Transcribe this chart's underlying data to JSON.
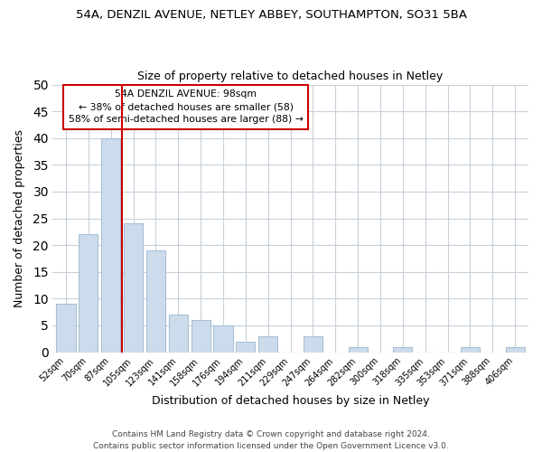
{
  "title_line1": "54A, DENZIL AVENUE, NETLEY ABBEY, SOUTHAMPTON, SO31 5BA",
  "title_line2": "Size of property relative to detached houses in Netley",
  "xlabel": "Distribution of detached houses by size in Netley",
  "ylabel": "Number of detached properties",
  "bar_labels": [
    "52sqm",
    "70sqm",
    "87sqm",
    "105sqm",
    "123sqm",
    "141sqm",
    "158sqm",
    "176sqm",
    "194sqm",
    "211sqm",
    "229sqm",
    "247sqm",
    "264sqm",
    "282sqm",
    "300sqm",
    "318sqm",
    "335sqm",
    "353sqm",
    "371sqm",
    "388sqm",
    "406sqm"
  ],
  "bar_heights": [
    9,
    22,
    40,
    24,
    19,
    7,
    6,
    5,
    2,
    3,
    0,
    3,
    0,
    1,
    0,
    1,
    0,
    0,
    1,
    0,
    1
  ],
  "bar_color": "#ccdcec",
  "bar_edge_color": "#a8c0d4",
  "vline_color": "#cc0000",
  "annotation_title": "54A DENZIL AVENUE: 98sqm",
  "annotation_line2": "← 38% of detached houses are smaller (58)",
  "annotation_line3": "58% of semi-detached houses are larger (88) →",
  "annotation_box_color": "#ffffff",
  "annotation_box_edge": "#cc0000",
  "ylim": [
    0,
    50
  ],
  "yticks": [
    0,
    5,
    10,
    15,
    20,
    25,
    30,
    35,
    40,
    45,
    50
  ],
  "footer_line1": "Contains HM Land Registry data © Crown copyright and database right 2024.",
  "footer_line2": "Contains public sector information licensed under the Open Government Licence v3.0.",
  "background_color": "#ffffff",
  "grid_color": "#c8d0da"
}
